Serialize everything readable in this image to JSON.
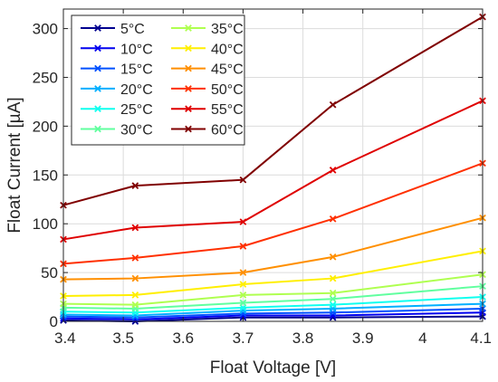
{
  "chart_data": {
    "type": "line",
    "title": "",
    "xlabel": "Float Voltage [V]",
    "ylabel": "Float Current [µA]",
    "xlim": [
      3.4,
      4.1
    ],
    "ylim": [
      0,
      320
    ],
    "xticks": [
      "3.4",
      "3.5",
      "3.6",
      "3.7",
      "3.8",
      "3.9",
      "4",
      "4.1"
    ],
    "yticks": [
      "0",
      "50",
      "100",
      "150",
      "200",
      "250",
      "300"
    ],
    "x": [
      3.4,
      3.52,
      3.7,
      3.85,
      4.1
    ],
    "grid": true,
    "legend_position": "top-left",
    "legend_columns": 2,
    "series": [
      {
        "name": "5°C",
        "color": "#00008f",
        "values": [
          1,
          0,
          4,
          4,
          5
        ]
      },
      {
        "name": "10°C",
        "color": "#0000ef",
        "values": [
          3,
          2,
          6,
          6,
          9
        ]
      },
      {
        "name": "15°C",
        "color": "#0050ff",
        "values": [
          5,
          4,
          8,
          9,
          13
        ]
      },
      {
        "name": "20°C",
        "color": "#00afff",
        "values": [
          7,
          6,
          11,
          13,
          18
        ]
      },
      {
        "name": "25°C",
        "color": "#10ffef",
        "values": [
          10,
          9,
          14,
          17,
          25
        ]
      },
      {
        "name": "30°C",
        "color": "#60ff9f",
        "values": [
          14,
          13,
          19,
          23,
          36
        ]
      },
      {
        "name": "35°C",
        "color": "#afff50",
        "values": [
          18,
          17,
          27,
          29,
          48
        ]
      },
      {
        "name": "40°C",
        "color": "#ffef00",
        "values": [
          26,
          27,
          38,
          44,
          72
        ]
      },
      {
        "name": "45°C",
        "color": "#ff8f00",
        "values": [
          43,
          44,
          50,
          66,
          106
        ]
      },
      {
        "name": "50°C",
        "color": "#ff3000",
        "values": [
          59,
          65,
          77,
          105,
          162
        ]
      },
      {
        "name": "55°C",
        "color": "#df0000",
        "values": [
          84,
          96,
          102,
          155,
          226
        ]
      },
      {
        "name": "60°C",
        "color": "#800000",
        "values": [
          119,
          139,
          145,
          222,
          312
        ]
      }
    ]
  }
}
